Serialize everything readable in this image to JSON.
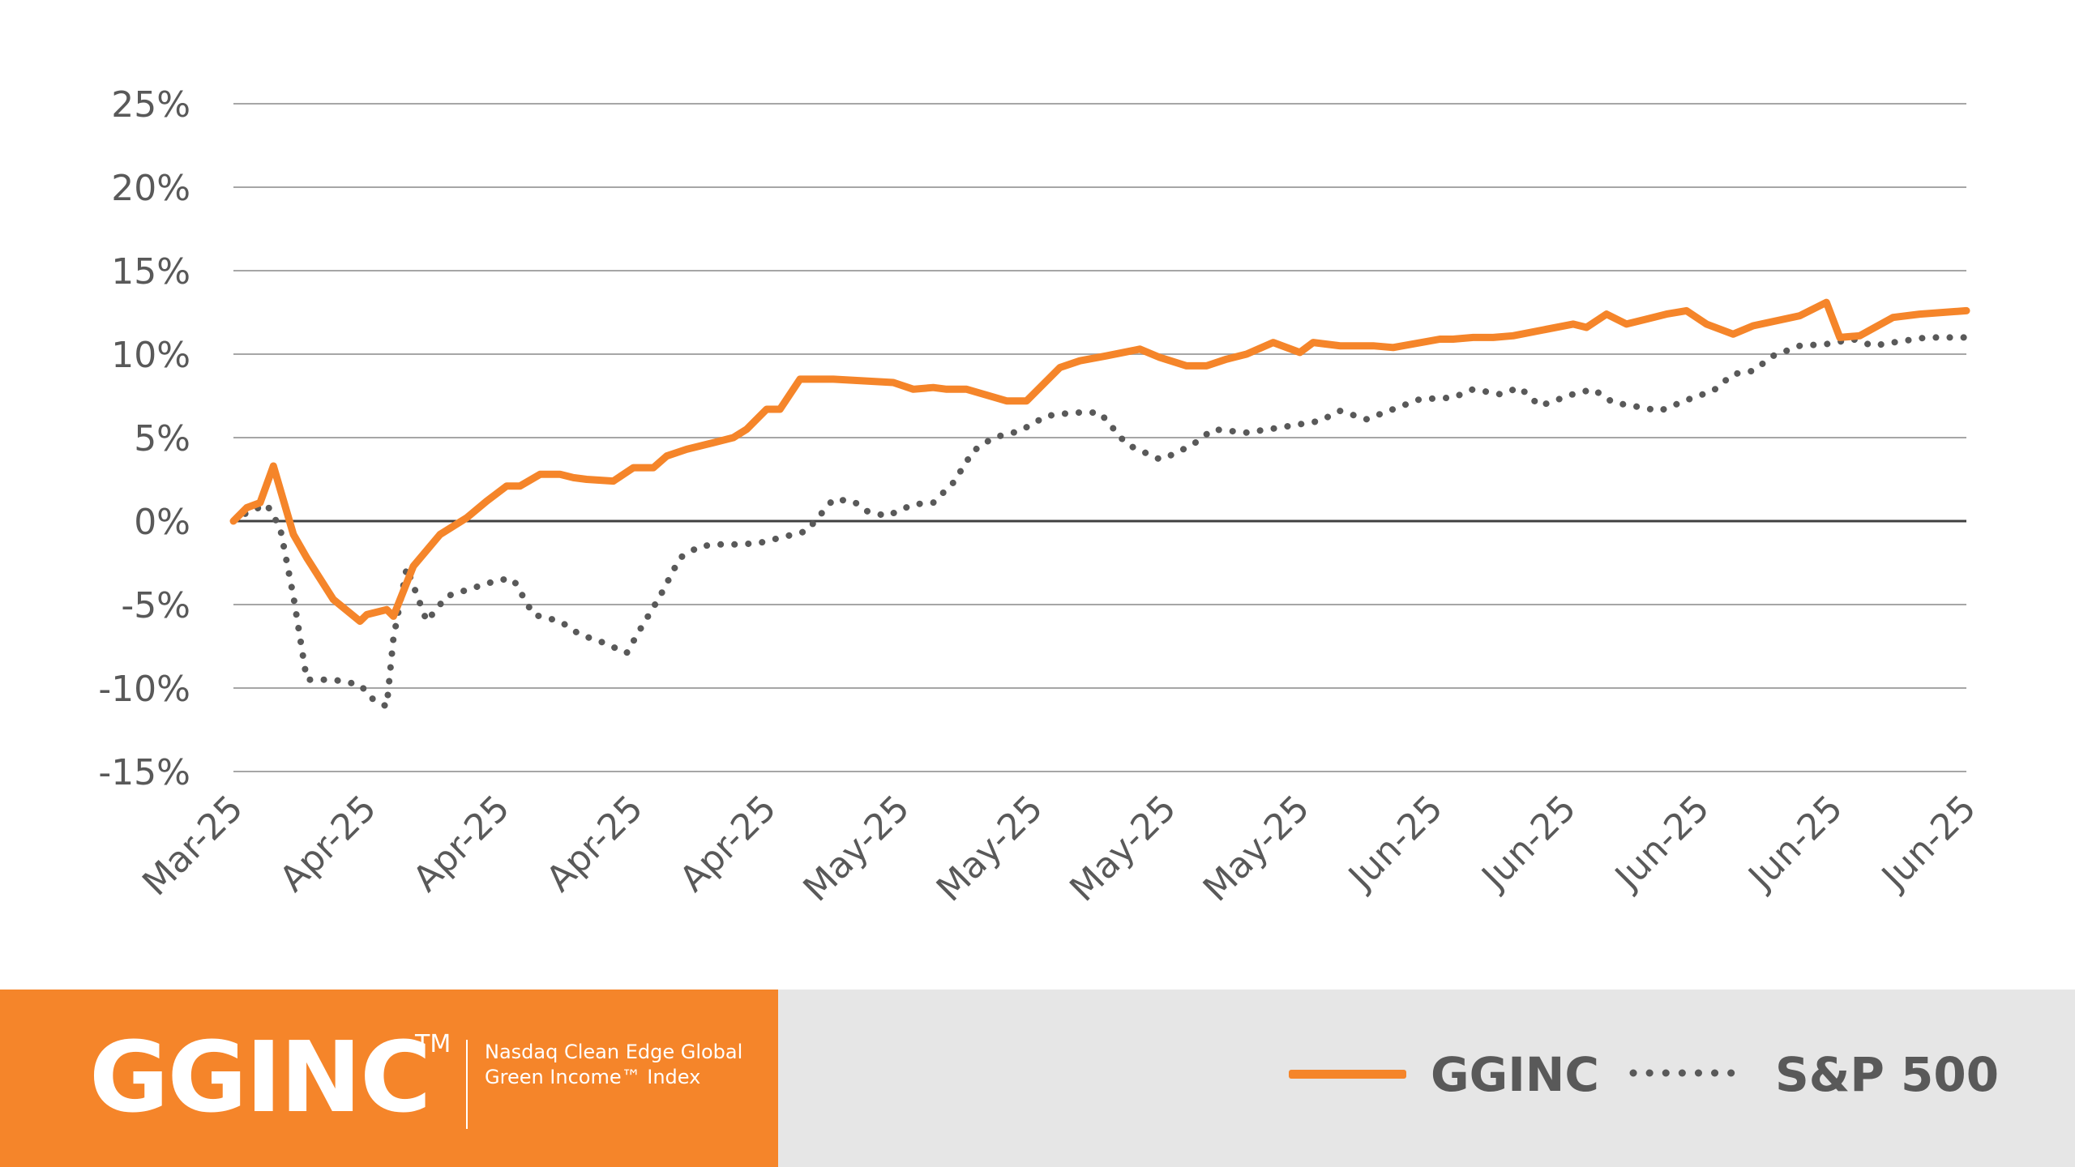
{
  "chart_data": {
    "type": "line",
    "ylim": [
      -15,
      25
    ],
    "y_ticks": [
      "25%",
      "20%",
      "15%",
      "10%",
      "5%",
      "0%",
      "-5%",
      "-10%",
      "-15%"
    ],
    "y_tick_values": [
      25,
      20,
      15,
      10,
      5,
      0,
      -5,
      -10,
      -15
    ],
    "x_ticks": [
      "Mar-25",
      "Apr-25",
      "Apr-25",
      "Apr-25",
      "Apr-25",
      "May-25",
      "May-25",
      "May-25",
      "May-25",
      "Jun-25",
      "Jun-25",
      "Jun-25",
      "Jun-25",
      "Jun-25"
    ],
    "grid": true,
    "legend": "bottom-right",
    "series": [
      {
        "name": "GGINC",
        "color": "#f5852a",
        "style": "solid",
        "x": [
          0,
          0.1,
          0.2,
          0.3,
          0.45,
          0.55,
          0.75,
          0.95,
          1.0,
          1.15,
          1.2,
          1.35,
          1.55,
          1.75,
          1.9,
          2.05,
          2.15,
          2.3,
          2.45,
          2.55,
          2.65,
          2.85,
          3.0,
          3.15,
          3.25,
          3.4,
          3.6,
          3.75,
          3.85,
          4.0,
          4.1,
          4.25,
          4.35,
          4.5,
          4.95,
          5.1,
          5.25,
          5.35,
          5.5,
          5.8,
          5.95,
          6.1,
          6.2,
          6.35,
          6.55,
          6.8,
          6.95,
          7.15,
          7.3,
          7.45,
          7.6,
          7.8,
          8.0,
          8.1,
          8.3,
          8.45,
          8.55,
          8.7,
          9.05,
          9.15,
          9.3,
          9.45,
          9.6,
          10.05,
          10.15,
          10.3,
          10.45,
          10.75,
          10.9,
          11.05,
          11.25,
          11.4,
          11.75,
          11.95,
          12.05,
          12.2,
          12.45,
          12.65,
          13.0
        ],
        "values": [
          0,
          0.8,
          1.1,
          3.3,
          -0.8,
          -2.2,
          -4.7,
          -6.0,
          -5.6,
          -5.3,
          -5.7,
          -2.7,
          -0.8,
          0.2,
          1.2,
          2.1,
          2.1,
          2.8,
          2.8,
          2.6,
          2.5,
          2.4,
          3.2,
          3.2,
          3.9,
          4.3,
          4.7,
          5.0,
          5.5,
          6.7,
          6.7,
          8.5,
          8.5,
          8.5,
          8.3,
          7.9,
          8.0,
          7.9,
          7.9,
          7.2,
          7.2,
          8.4,
          9.2,
          9.6,
          9.9,
          10.3,
          9.8,
          9.3,
          9.3,
          9.7,
          10.0,
          10.7,
          10.1,
          10.7,
          10.5,
          10.5,
          10.5,
          10.4,
          10.9,
          10.9,
          11.0,
          11.0,
          11.1,
          11.8,
          11.6,
          12.4,
          11.8,
          12.4,
          12.6,
          11.8,
          11.2,
          11.7,
          12.3,
          13.1,
          11.0,
          11.1,
          12.2,
          12.4,
          12.6
        ]
      },
      {
        "name": "S&P 500",
        "color": "#595959",
        "style": "dotted",
        "x": [
          0,
          0.1,
          0.25,
          0.35,
          0.45,
          0.55,
          0.75,
          0.95,
          1.05,
          1.15,
          1.2,
          1.3,
          1.45,
          1.6,
          1.8,
          2.0,
          2.1,
          2.25,
          2.45,
          2.6,
          2.75,
          2.95,
          3.05,
          3.2,
          3.35,
          3.5,
          3.65,
          3.8,
          3.95,
          4.2,
          4.3,
          4.5,
          4.65,
          4.75,
          4.9,
          5.1,
          5.25,
          5.4,
          5.55,
          5.7,
          5.9,
          6.1,
          6.3,
          6.5,
          6.7,
          6.95,
          7.05,
          7.2,
          7.35,
          7.6,
          7.85,
          8.0,
          8.15,
          8.3,
          8.5,
          8.9,
          9.15,
          9.3,
          9.5,
          9.65,
          9.8,
          10.05,
          10.2,
          10.35,
          10.5,
          10.7,
          10.95,
          11.1,
          11.25,
          11.4,
          11.55,
          11.75,
          11.95,
          12.15,
          12.3,
          12.45,
          12.7,
          13.0
        ],
        "values": [
          0,
          0.5,
          1.0,
          -0.4,
          -4.5,
          -9.5,
          -9.5,
          -9.8,
          -10.7,
          -11.1,
          -7.0,
          -2.8,
          -6.0,
          -4.5,
          -4.0,
          -3.5,
          -3.5,
          -5.6,
          -6.0,
          -6.8,
          -7.2,
          -7.9,
          -6.5,
          -4.5,
          -2.2,
          -1.5,
          -1.4,
          -1.4,
          -1.3,
          -0.8,
          -0.6,
          1.3,
          1.2,
          0.6,
          0.3,
          1.0,
          1.1,
          2.3,
          4.2,
          5.0,
          5.4,
          6.3,
          6.5,
          6.5,
          4.6,
          3.7,
          4.0,
          4.6,
          5.5,
          5.3,
          5.6,
          5.8,
          6.0,
          6.6,
          6.1,
          7.3,
          7.4,
          7.9,
          7.6,
          8.0,
          6.9,
          7.6,
          7.9,
          7.1,
          6.9,
          6.6,
          7.4,
          7.8,
          8.8,
          9.0,
          9.9,
          10.5,
          10.6,
          10.9,
          10.5,
          10.7,
          11.0,
          11.0
        ]
      }
    ]
  },
  "footer": {
    "brand_name": "GGINC",
    "brand_tm": "TM",
    "brand_description": "Nasdaq Clean Edge Global Green Income™ Index"
  },
  "legend": {
    "ggi_label": "GGINC",
    "sp_label": "S&P 500"
  },
  "colors": {
    "orange": "#f5852a",
    "grey": "#595959",
    "footer_bg": "#e6e6e6"
  }
}
